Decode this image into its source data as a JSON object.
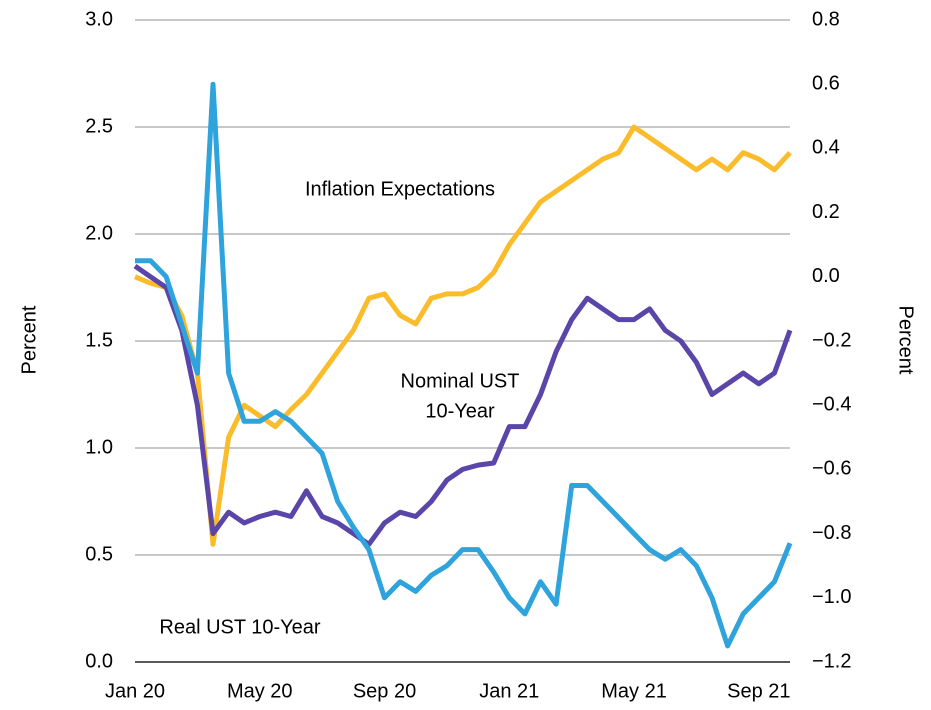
{
  "chart_data": {
    "type": "line",
    "ylabel": "Percent",
    "y2label": "Percent",
    "x": [
      0,
      0.5,
      1,
      1.5,
      2,
      2.5,
      3,
      3.5,
      4,
      4.5,
      5,
      5.5,
      6,
      6.5,
      7,
      7.5,
      8,
      8.5,
      9,
      9.5,
      10,
      10.5,
      11,
      11.5,
      12,
      12.5,
      13,
      13.5,
      14,
      14.5,
      15,
      15.5,
      16,
      16.5,
      17,
      17.5,
      18,
      18.5,
      19,
      19.5,
      20,
      20.5,
      21
    ],
    "xlim": [
      0,
      21
    ],
    "xticks": [
      {
        "value": 0,
        "label": "Jan 20"
      },
      {
        "value": 4,
        "label": "May 20"
      },
      {
        "value": 8,
        "label": "Sep 20"
      },
      {
        "value": 12,
        "label": "Jan 21"
      },
      {
        "value": 16,
        "label": "May 21"
      },
      {
        "value": 20,
        "label": "Sep 21"
      }
    ],
    "ylim": [
      0,
      3
    ],
    "yticks": [
      {
        "value": 0,
        "label": "0.0"
      },
      0.5,
      {
        "value": 1,
        "label": "1.0"
      },
      1.5,
      {
        "value": 2,
        "label": "2.0"
      },
      2.5,
      {
        "value": 3,
        "label": "3.0"
      }
    ],
    "y2lim": [
      -1.2,
      0.8
    ],
    "y2ticks": [
      {
        "value": -1.2,
        "label": "−1.2"
      },
      {
        "value": -1.0,
        "label": "−1.0"
      },
      {
        "value": -0.8,
        "label": "−0.8"
      },
      {
        "value": -0.6,
        "label": "−0.6"
      },
      {
        "value": -0.4,
        "label": "−0.4"
      },
      {
        "value": -0.2,
        "label": "−0.2"
      },
      {
        "value": 0,
        "label": "0.0"
      },
      0.2,
      0.4,
      0.6,
      0.8
    ],
    "grid": true,
    "series": [
      {
        "color": "#fbbc2b",
        "values": [
          1.8,
          1.77,
          1.75,
          1.62,
          1.35,
          0.55,
          1.05,
          1.2,
          1.15,
          1.1,
          1.18,
          1.25,
          1.35,
          1.45,
          1.55,
          1.7,
          1.72,
          1.62,
          1.58,
          1.7,
          1.72,
          1.72,
          1.75,
          1.82,
          1.95,
          2.05,
          2.15,
          2.2,
          2.25,
          2.3,
          2.35,
          2.38,
          2.5,
          2.45,
          2.4,
          2.35,
          2.3,
          2.35,
          2.3,
          2.38,
          2.35,
          2.3,
          2.38
        ]
      },
      {
        "color": "#5a45a8",
        "values": [
          1.85,
          1.8,
          1.75,
          1.55,
          1.2,
          0.6,
          0.7,
          0.65,
          0.68,
          0.7,
          0.68,
          0.8,
          0.68,
          0.65,
          0.6,
          0.55,
          0.65,
          0.7,
          0.68,
          0.75,
          0.85,
          0.9,
          0.92,
          0.93,
          1.1,
          1.1,
          1.25,
          1.45,
          1.6,
          1.7,
          1.65,
          1.6,
          1.6,
          1.65,
          1.55,
          1.5,
          1.4,
          1.25,
          1.3,
          1.35,
          1.3,
          1.35,
          1.55
        ]
      },
      {
        "color": "#2ea3dc",
        "axis": "y2",
        "values": [
          0.05,
          0.05,
          0.0,
          -0.15,
          -0.3,
          0.6,
          -0.3,
          -0.45,
          -0.45,
          -0.42,
          -0.45,
          -0.5,
          -0.55,
          -0.7,
          -0.78,
          -0.85,
          -1.0,
          -0.95,
          -0.98,
          -0.93,
          -0.9,
          -0.85,
          -0.85,
          -0.92,
          -1.0,
          -1.05,
          -0.95,
          -1.02,
          -0.65,
          -0.65,
          -0.7,
          -0.75,
          -0.8,
          -0.85,
          -0.88,
          -0.85,
          -0.9,
          -1.0,
          -1.15,
          -1.05,
          -1.0,
          -0.95,
          -0.83
        ]
      }
    ],
    "annotations": [
      {
        "lines": [
          "Inflation Expectations"
        ]
      },
      {
        "lines": [
          "Nominal UST",
          "10-Year"
        ]
      },
      {
        "lines": [
          "Real UST 10-Year"
        ]
      }
    ]
  }
}
